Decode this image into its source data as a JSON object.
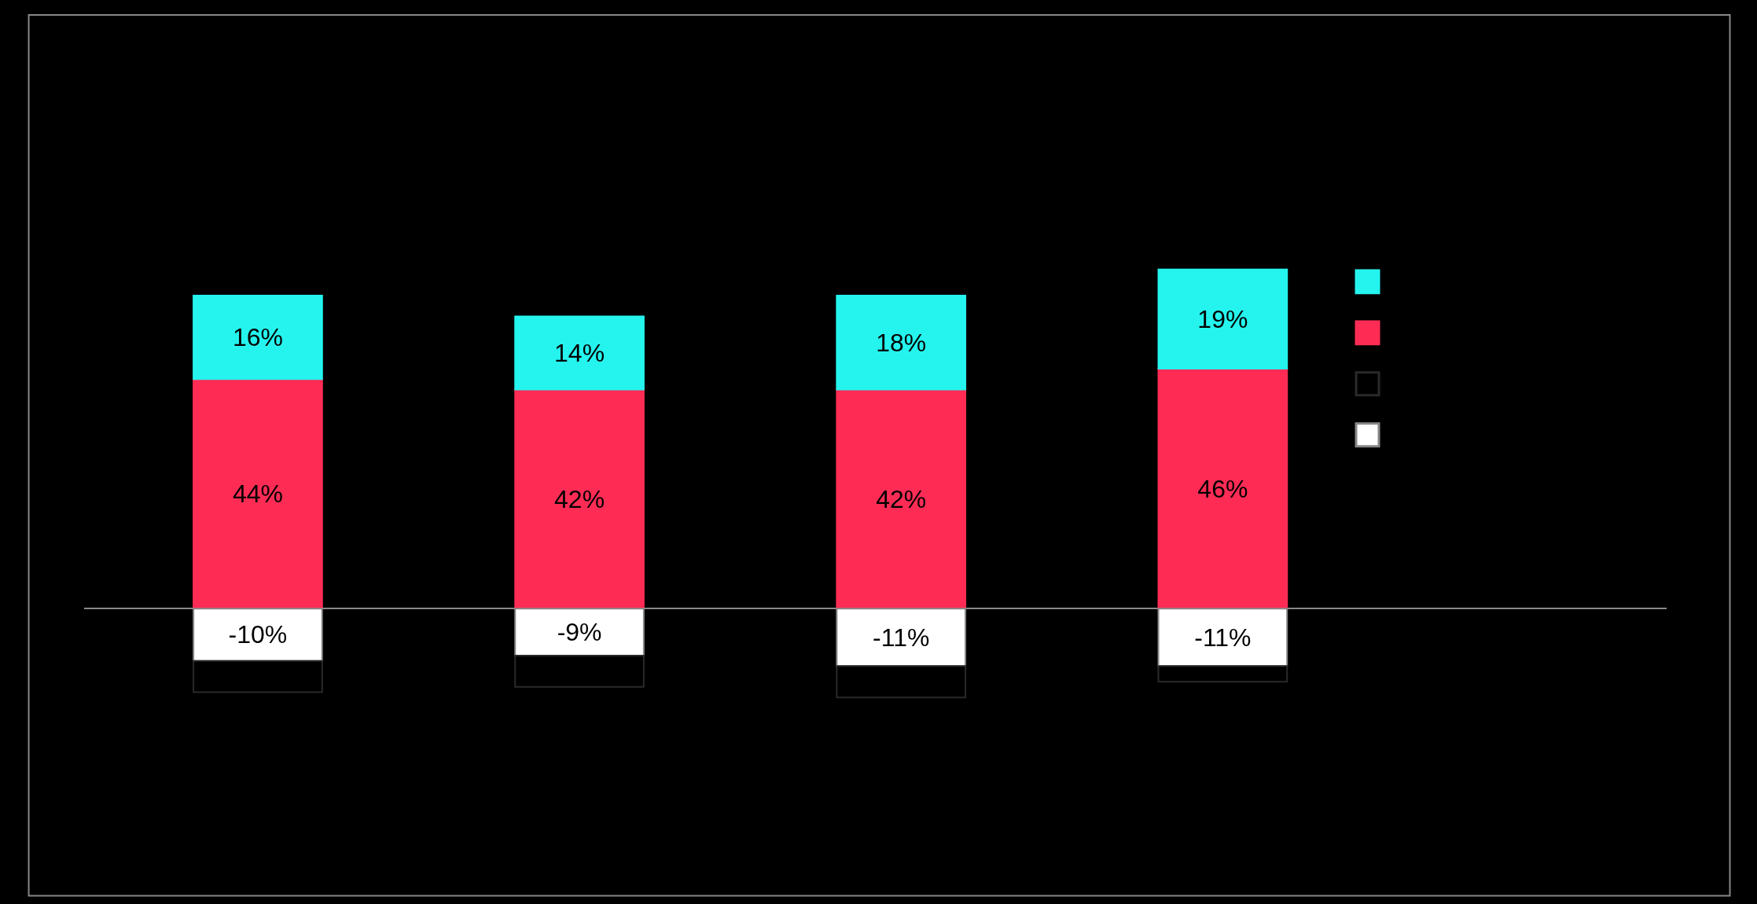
{
  "chart_data": {
    "type": "bar",
    "stacked": true,
    "categories": [
      null,
      null,
      null,
      null
    ],
    "series": [
      {
        "color": "#fe2c55",
        "values": [
          44,
          42,
          42,
          46
        ],
        "value_labels": [
          "44%",
          "42%",
          "42%",
          "46%"
        ]
      },
      {
        "color": "#25f4ee",
        "values": [
          16,
          14,
          18,
          19
        ],
        "value_labels": [
          "16%",
          "14%",
          "18%",
          "19%"
        ]
      },
      {
        "color": "#ffffff",
        "values": [
          -10,
          -9,
          -11,
          -11
        ],
        "value_labels": [
          "-10%",
          "-9%",
          "-11%",
          "-11%"
        ]
      },
      {
        "color": "#000000",
        "values": [
          -6,
          -6,
          -6,
          -3
        ]
      }
    ],
    "grid": false
  }
}
